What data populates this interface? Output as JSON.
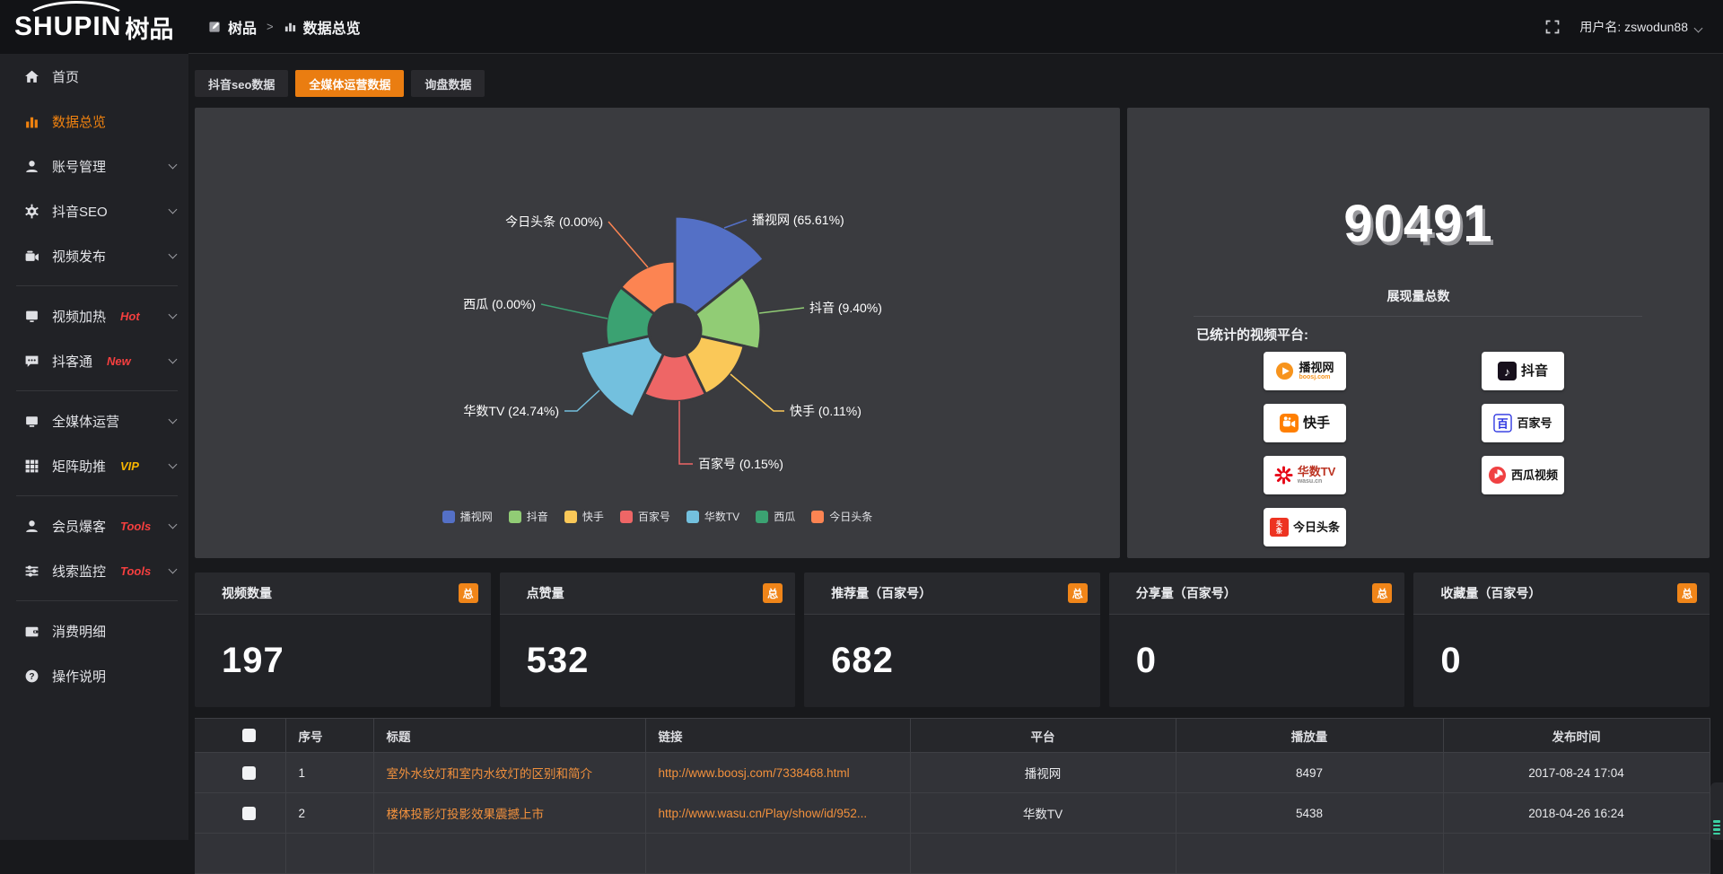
{
  "logo": {
    "en": "SHUPIN",
    "cn": "树品"
  },
  "topbar": {
    "breadcrumb_root": "树品",
    "breadcrumb_sep": ">",
    "breadcrumb_current": "数据总览",
    "username": "用户名: zswodun88"
  },
  "sidebar": {
    "items": [
      {
        "label": "首页"
      },
      {
        "label": "数据总览"
      },
      {
        "label": "账号管理"
      },
      {
        "label": "抖音SEO"
      },
      {
        "label": "视频发布"
      },
      {
        "label": "视频加热",
        "badge": "Hot"
      },
      {
        "label": "抖客通",
        "badge": "New"
      },
      {
        "label": "全媒体运营"
      },
      {
        "label": "矩阵助推",
        "badge": "VIP"
      },
      {
        "label": "会员爆客",
        "badge": "Tools"
      },
      {
        "label": "线索监控",
        "badge": "Tools"
      },
      {
        "label": "消费明细"
      },
      {
        "label": "操作说明"
      }
    ]
  },
  "tabs": [
    {
      "label": "抖音seo数据",
      "active": false
    },
    {
      "label": "全媒体运营数据",
      "active": true
    },
    {
      "label": "询盘数据",
      "active": false
    }
  ],
  "chart_data": {
    "type": "pie",
    "variant": "nightingale-rose",
    "title": "",
    "categories": [
      "播视网",
      "抖音",
      "快手",
      "百家号",
      "华数TV",
      "西瓜",
      "今日头条"
    ],
    "values": [
      65.61,
      9.4,
      0.11,
      0.15,
      24.74,
      0.0,
      0.0
    ],
    "value_unit": "%",
    "colors": [
      "#5470c6",
      "#91cc75",
      "#fac858",
      "#ee6666",
      "#73c0de",
      "#3ba272",
      "#fc8452"
    ],
    "legend_position": "bottom",
    "label_format": "{name} ({value}%)"
  },
  "summary": {
    "total_value": "90491",
    "total_label": "展现量总数",
    "platforms_title": "已统计的视频平台:",
    "platforms": [
      {
        "name": "播视网",
        "sub": "boosj.com"
      },
      {
        "name": "抖音"
      },
      {
        "name": "快手"
      },
      {
        "name": "百家号"
      },
      {
        "name": "华数TV",
        "sub": "wasu.cn"
      },
      {
        "name": "西瓜视频"
      },
      {
        "name": "今日头条"
      }
    ]
  },
  "stat_cards": [
    {
      "title": "视频数量",
      "badge": "总",
      "value": "197"
    },
    {
      "title": "点赞量",
      "badge": "总",
      "value": "532"
    },
    {
      "title": "推荐量（百家号）",
      "badge": "总",
      "value": "682"
    },
    {
      "title": "分享量（百家号）",
      "badge": "总",
      "value": "0"
    },
    {
      "title": "收藏量（百家号）",
      "badge": "总",
      "value": "0"
    }
  ],
  "table": {
    "headers": [
      "序号",
      "标题",
      "链接",
      "平台",
      "播放量",
      "发布时间"
    ],
    "rows": [
      {
        "index": "1",
        "title": "室外水纹灯和室内水纹灯的区别和简介",
        "link": "http://www.boosj.com/7338468.html",
        "platform": "播视网",
        "plays": "8497",
        "time": "2017-08-24 17:04"
      },
      {
        "index": "2",
        "title": "楼体投影灯投影效果震撼上市",
        "link": "http://www.wasu.cn/Play/show/id/952...",
        "platform": "华数TV",
        "plays": "5438",
        "time": "2018-04-26 16:24"
      }
    ]
  }
}
